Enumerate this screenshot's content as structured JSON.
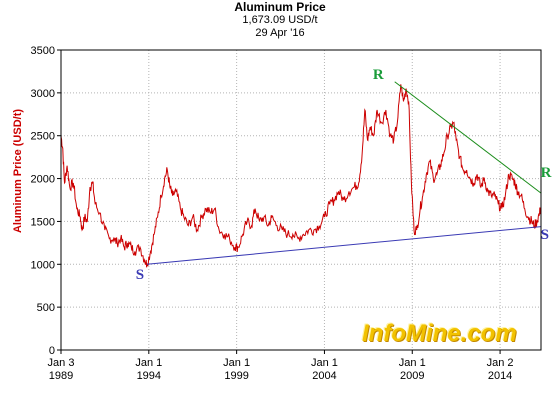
{
  "header": {
    "title": "Aluminum Price",
    "price": "1,673.09 USD/t",
    "date": "29 Apr '16"
  },
  "yaxis_label": "Aluminum Price (USD/t)",
  "watermark": "InfoMine.com",
  "annotations": {
    "support": "S",
    "resistance": "R"
  },
  "colors": {
    "series": "#cc0000",
    "support_line": "#3a3ab4",
    "resistance_line": "#1a8c1a",
    "support_label": "#3a3ab4",
    "resistance_label": "#1a9c3a",
    "grid": "#b4b4b4"
  },
  "chart_data": {
    "type": "line",
    "title": "Aluminum Price",
    "ylabel": "Aluminum Price (USD/t)",
    "xlabel": "",
    "ylim": [
      0,
      3500
    ],
    "xlim": [
      1989.0,
      2016.33
    ],
    "y_ticks": [
      0,
      500,
      1000,
      1500,
      2000,
      2500,
      3000,
      3500
    ],
    "x_ticks": [
      {
        "x": 1989.0,
        "line1": "Jan 3",
        "line2": "1989"
      },
      {
        "x": 1994.0,
        "line1": "Jan 1",
        "line2": "1994"
      },
      {
        "x": 1999.0,
        "line1": "Jan 1",
        "line2": "1999"
      },
      {
        "x": 2004.0,
        "line1": "Jan 1",
        "line2": "2004"
      },
      {
        "x": 2009.0,
        "line1": "Jan 1",
        "line2": "2009"
      },
      {
        "x": 2014.0,
        "line1": "Jan 2",
        "line2": "2014"
      }
    ],
    "grid": true,
    "series": [
      {
        "x": [
          1989.0,
          1989.1,
          1989.2,
          1989.35,
          1989.5,
          1989.7,
          1989.9,
          1990.1,
          1990.2,
          1990.35,
          1990.5,
          1990.65,
          1990.8,
          1990.95,
          1991.2,
          1991.5,
          1991.75,
          1992.0,
          1992.2,
          1992.4,
          1992.6,
          1992.8,
          1993.0,
          1993.2,
          1993.5,
          1993.75,
          1993.9,
          1994.1,
          1994.3,
          1994.5,
          1994.7,
          1994.9,
          1995.05,
          1995.2,
          1995.35,
          1995.55,
          1995.8,
          1996.0,
          1996.25,
          1996.5,
          1996.75,
          1997.0,
          1997.25,
          1997.5,
          1997.75,
          1998.0,
          1998.3,
          1998.6,
          1998.9,
          1999.1,
          1999.35,
          1999.6,
          1999.85,
          2000.05,
          2000.3,
          2000.55,
          2000.8,
          2001.0,
          2001.3,
          2001.6,
          2001.9,
          2002.2,
          2002.5,
          2002.8,
          2003.1,
          2003.4,
          2003.7,
          2004.0,
          2004.3,
          2004.55,
          2004.8,
          2005.1,
          2005.4,
          2005.7,
          2005.95,
          2006.15,
          2006.3,
          2006.45,
          2006.6,
          2006.8,
          2007.0,
          2007.25,
          2007.5,
          2007.75,
          2007.95,
          2008.15,
          2008.35,
          2008.5,
          2008.65,
          2008.8,
          2008.95,
          2009.1,
          2009.25,
          2009.45,
          2009.6,
          2009.8,
          2010.0,
          2010.2,
          2010.4,
          2010.6,
          2010.8,
          2011.0,
          2011.2,
          2011.35,
          2011.5,
          2011.7,
          2011.9,
          2012.1,
          2012.3,
          2012.5,
          2012.7,
          2012.9,
          2013.1,
          2013.3,
          2013.5,
          2013.7,
          2013.9,
          2014.1,
          2014.3,
          2014.5,
          2014.7,
          2014.85,
          2015.0,
          2015.2,
          2015.4,
          2015.6,
          2015.8,
          2015.95,
          2016.1,
          2016.25,
          2016.33
        ],
        "y": [
          2500,
          2350,
          1950,
          2150,
          1900,
          1950,
          1650,
          1550,
          1400,
          1550,
          1500,
          1900,
          1950,
          1700,
          1600,
          1400,
          1300,
          1300,
          1250,
          1300,
          1200,
          1250,
          1200,
          1150,
          1200,
          1050,
          1000,
          1150,
          1350,
          1550,
          1800,
          2000,
          2100,
          1900,
          1800,
          1850,
          1650,
          1550,
          1450,
          1550,
          1400,
          1550,
          1650,
          1600,
          1650,
          1400,
          1350,
          1300,
          1200,
          1200,
          1350,
          1500,
          1450,
          1650,
          1500,
          1550,
          1450,
          1550,
          1450,
          1400,
          1350,
          1350,
          1300,
          1350,
          1400,
          1400,
          1450,
          1550,
          1700,
          1750,
          1850,
          1750,
          1850,
          1900,
          1950,
          2300,
          2800,
          2450,
          2600,
          2500,
          2800,
          2650,
          2800,
          2500,
          2450,
          2650,
          3100,
          2900,
          3050,
          2900,
          1950,
          1400,
          1400,
          1650,
          1800,
          2050,
          2200,
          2000,
          2050,
          2150,
          2300,
          2500,
          2600,
          2650,
          2450,
          2250,
          2100,
          2100,
          2000,
          1950,
          2050,
          1900,
          2000,
          1850,
          1800,
          1800,
          1700,
          1650,
          1800,
          2050,
          2000,
          1950,
          1850,
          1800,
          1650,
          1550,
          1500,
          1450,
          1500,
          1600,
          1673
        ]
      }
    ],
    "trendlines": [
      {
        "name": "support",
        "x": [
          1993.9,
          2016.33
        ],
        "y": [
          1000,
          1440
        ]
      },
      {
        "name": "resistance",
        "x": [
          2008.0,
          2016.33
        ],
        "y": [
          3130,
          1830
        ]
      }
    ],
    "annotation_points": [
      {
        "text": "S",
        "x": 1993.6,
        "y": 850,
        "kind": "support"
      },
      {
        "text": "R",
        "x": 2007.1,
        "y": 3190,
        "kind": "resistance"
      },
      {
        "text": "R",
        "x": 2016.65,
        "y": 2045,
        "kind": "resistance"
      },
      {
        "text": "S",
        "x": 2016.65,
        "y": 1315,
        "kind": "support"
      }
    ]
  }
}
